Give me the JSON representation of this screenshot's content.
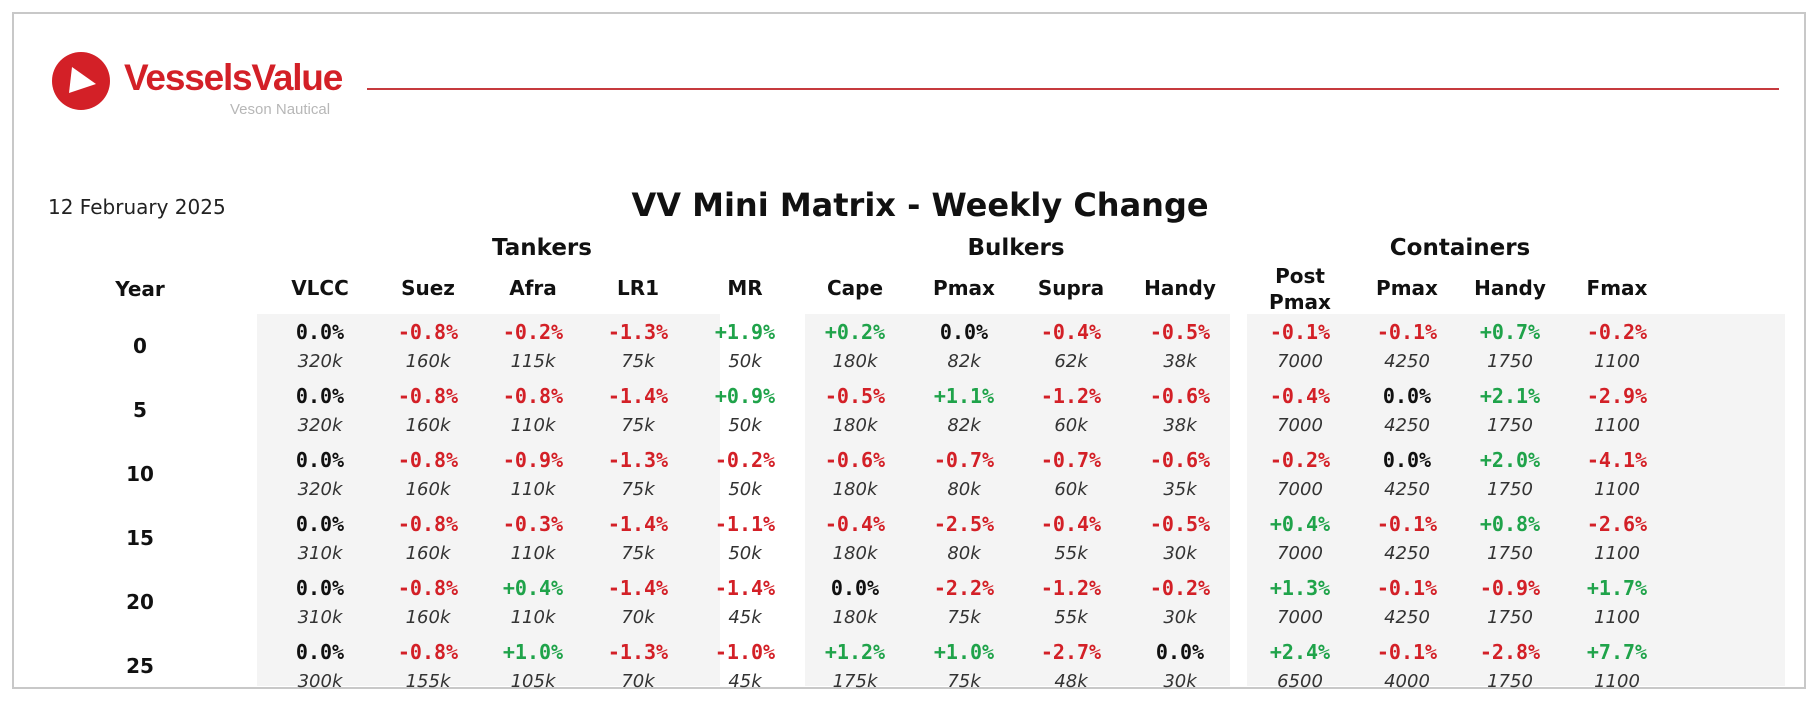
{
  "brand": {
    "name": "VesselsValue",
    "subtitle": "Veson Nautical",
    "accent_color": "#d32027",
    "icon": "play-triangle-logo-icon"
  },
  "report": {
    "date": "12 February 2025",
    "title": "VV Mini Matrix - Weekly Change"
  },
  "year_header": "Year",
  "colors": {
    "positive": "#1fa34a",
    "negative": "#d32027",
    "neutral": "#111111"
  },
  "groups": [
    {
      "name": "Tankers",
      "columns": [
        {
          "label": "VLCC",
          "cells": [
            {
              "change": "0.0%",
              "size": "320k"
            },
            {
              "change": "0.0%",
              "size": "320k"
            },
            {
              "change": "0.0%",
              "size": "320k"
            },
            {
              "change": "0.0%",
              "size": "310k"
            },
            {
              "change": "0.0%",
              "size": "310k"
            },
            {
              "change": "0.0%",
              "size": "300k"
            }
          ]
        },
        {
          "label": "Suez",
          "cells": [
            {
              "change": "-0.8%",
              "size": "160k"
            },
            {
              "change": "-0.8%",
              "size": "160k"
            },
            {
              "change": "-0.8%",
              "size": "160k"
            },
            {
              "change": "-0.8%",
              "size": "160k"
            },
            {
              "change": "-0.8%",
              "size": "160k"
            },
            {
              "change": "-0.8%",
              "size": "155k"
            }
          ]
        },
        {
          "label": "Afra",
          "cells": [
            {
              "change": "-0.2%",
              "size": "115k"
            },
            {
              "change": "-0.8%",
              "size": "110k"
            },
            {
              "change": "-0.9%",
              "size": "110k"
            },
            {
              "change": "-0.3%",
              "size": "110k"
            },
            {
              "change": "+0.4%",
              "size": "110k"
            },
            {
              "change": "+1.0%",
              "size": "105k"
            }
          ]
        },
        {
          "label": "LR1",
          "cells": [
            {
              "change": "-1.3%",
              "size": "75k"
            },
            {
              "change": "-1.4%",
              "size": "75k"
            },
            {
              "change": "-1.3%",
              "size": "75k"
            },
            {
              "change": "-1.4%",
              "size": "75k"
            },
            {
              "change": "-1.4%",
              "size": "70k"
            },
            {
              "change": "-1.3%",
              "size": "70k"
            }
          ]
        },
        {
          "label": "MR",
          "cells": [
            {
              "change": "+1.9%",
              "size": "50k"
            },
            {
              "change": "+0.9%",
              "size": "50k"
            },
            {
              "change": "-0.2%",
              "size": "50k"
            },
            {
              "change": "-1.1%",
              "size": "50k"
            },
            {
              "change": "-1.4%",
              "size": "45k"
            },
            {
              "change": "-1.0%",
              "size": "45k"
            }
          ]
        }
      ]
    },
    {
      "name": "Bulkers",
      "columns": [
        {
          "label": "Cape",
          "cells": [
            {
              "change": "+0.2%",
              "size": "180k"
            },
            {
              "change": "-0.5%",
              "size": "180k"
            },
            {
              "change": "-0.6%",
              "size": "180k"
            },
            {
              "change": "-0.4%",
              "size": "180k"
            },
            {
              "change": "0.0%",
              "size": "180k"
            },
            {
              "change": "+1.2%",
              "size": "175k"
            }
          ]
        },
        {
          "label": "Pmax",
          "cells": [
            {
              "change": "0.0%",
              "size": "82k"
            },
            {
              "change": "+1.1%",
              "size": "82k"
            },
            {
              "change": "-0.7%",
              "size": "80k"
            },
            {
              "change": "-2.5%",
              "size": "80k"
            },
            {
              "change": "-2.2%",
              "size": "75k"
            },
            {
              "change": "+1.0%",
              "size": "75k"
            }
          ]
        },
        {
          "label": "Supra",
          "cells": [
            {
              "change": "-0.4%",
              "size": "62k"
            },
            {
              "change": "-1.2%",
              "size": "60k"
            },
            {
              "change": "-0.7%",
              "size": "60k"
            },
            {
              "change": "-0.4%",
              "size": "55k"
            },
            {
              "change": "-1.2%",
              "size": "55k"
            },
            {
              "change": "-2.7%",
              "size": "48k"
            }
          ]
        },
        {
          "label": "Handy",
          "cells": [
            {
              "change": "-0.5%",
              "size": "38k"
            },
            {
              "change": "-0.6%",
              "size": "38k"
            },
            {
              "change": "-0.6%",
              "size": "35k"
            },
            {
              "change": "-0.5%",
              "size": "30k"
            },
            {
              "change": "-0.2%",
              "size": "30k"
            },
            {
              "change": "0.0%",
              "size": "30k"
            }
          ]
        }
      ]
    },
    {
      "name": "Containers",
      "columns": [
        {
          "label": "Post\nPmax",
          "cells": [
            {
              "change": "-0.1%",
              "size": "7000"
            },
            {
              "change": "-0.4%",
              "size": "7000"
            },
            {
              "change": "-0.2%",
              "size": "7000"
            },
            {
              "change": "+0.4%",
              "size": "7000"
            },
            {
              "change": "+1.3%",
              "size": "7000"
            },
            {
              "change": "+2.4%",
              "size": "6500"
            }
          ]
        },
        {
          "label": "Pmax",
          "cells": [
            {
              "change": "-0.1%",
              "size": "4250"
            },
            {
              "change": "0.0%",
              "size": "4250"
            },
            {
              "change": "0.0%",
              "size": "4250"
            },
            {
              "change": "-0.1%",
              "size": "4250"
            },
            {
              "change": "-0.1%",
              "size": "4250"
            },
            {
              "change": "-0.1%",
              "size": "4000"
            }
          ]
        },
        {
          "label": "Handy",
          "cells": [
            {
              "change": "+0.7%",
              "size": "1750"
            },
            {
              "change": "+2.1%",
              "size": "1750"
            },
            {
              "change": "+2.0%",
              "size": "1750"
            },
            {
              "change": "+0.8%",
              "size": "1750"
            },
            {
              "change": "-0.9%",
              "size": "1750"
            },
            {
              "change": "-2.8%",
              "size": "1750"
            }
          ]
        },
        {
          "label": "Fmax",
          "cells": [
            {
              "change": "-0.2%",
              "size": "1100"
            },
            {
              "change": "-2.9%",
              "size": "1100"
            },
            {
              "change": "-4.1%",
              "size": "1100"
            },
            {
              "change": "-2.6%",
              "size": "1100"
            },
            {
              "change": "+1.7%",
              "size": "1100"
            },
            {
              "change": "+7.7%",
              "size": "1100"
            }
          ]
        }
      ]
    }
  ],
  "years": [
    "0",
    "5",
    "10",
    "15",
    "20",
    "25"
  ]
}
